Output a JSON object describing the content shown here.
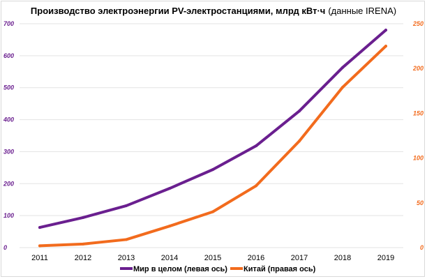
{
  "chart_data": {
    "type": "line",
    "title_bold": "Производство электроэнергии PV-электростанциями, млрд кВт·ч",
    "title_normal": "(данные IRENA)",
    "categories": [
      "2011",
      "2012",
      "2013",
      "2014",
      "2015",
      "2016",
      "2017",
      "2018",
      "2019"
    ],
    "series": [
      {
        "name": "Мир в целом (левая ось)",
        "axis": "left",
        "color": "#6a1f8f",
        "values": [
          63,
          94,
          131,
          185,
          244,
          318,
          427,
          563,
          680
        ]
      },
      {
        "name": "Китай (правая ось)",
        "axis": "right",
        "color": "#f26b1d",
        "values": [
          2,
          4,
          9,
          24,
          40,
          69,
          119,
          179,
          225
        ]
      }
    ],
    "left_axis": {
      "ylim": [
        0,
        700
      ],
      "ticks": [
        "0",
        "100",
        "200",
        "300",
        "400",
        "500",
        "600",
        "700"
      ],
      "color": "#6a1f8f"
    },
    "right_axis": {
      "ylim": [
        0,
        250
      ],
      "ticks": [
        "0",
        "50",
        "100",
        "150",
        "200",
        "250"
      ],
      "color": "#f26b1d"
    },
    "grid": true,
    "legend_position": "bottom"
  }
}
